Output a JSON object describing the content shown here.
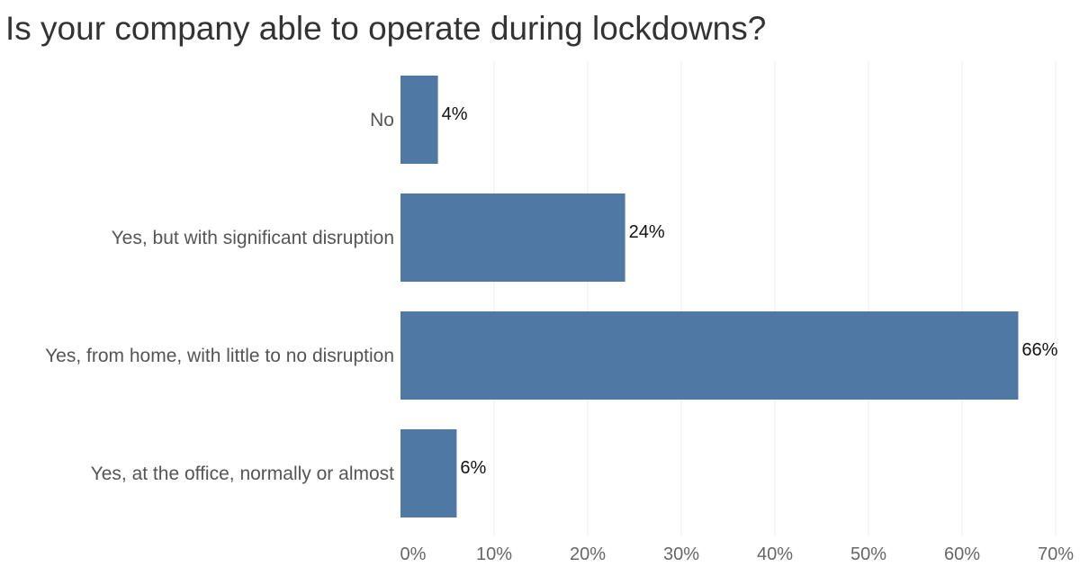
{
  "chart_data": {
    "type": "bar",
    "orientation": "horizontal",
    "title": "Is your company able to operate during lockdowns?",
    "categories": [
      "No",
      "Yes, but with significant disruption",
      "Yes, from home, with little to no disruption",
      "Yes, at the office, normally or almost"
    ],
    "values": [
      4,
      24,
      66,
      6
    ],
    "value_labels": [
      "4%",
      "24%",
      "66%",
      "6%"
    ],
    "xlim": [
      0,
      70
    ],
    "x_ticks": [
      0,
      10,
      20,
      30,
      40,
      50,
      60,
      70
    ],
    "x_tick_labels": [
      "0%",
      "10%",
      "20%",
      "30%",
      "40%",
      "50%",
      "60%",
      "70%"
    ],
    "grid": true,
    "legend": "none",
    "colors": {
      "bar": "#5078a5",
      "grid": "#ececec",
      "title": "#333333"
    }
  }
}
